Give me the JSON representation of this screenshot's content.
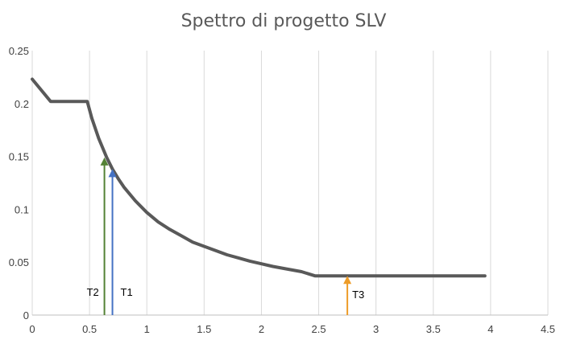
{
  "chart_data": {
    "type": "line",
    "title": "Spettro di progetto SLV",
    "xlabel": "",
    "ylabel": "",
    "xlim": [
      0,
      4.5
    ],
    "ylim": [
      0,
      0.25
    ],
    "x_ticks": [
      0,
      0.5,
      1,
      1.5,
      2,
      2.5,
      3,
      3.5,
      4,
      4.5
    ],
    "x_tick_labels": [
      "0",
      "0.5",
      "1",
      "1.5",
      "2",
      "2.5",
      "3",
      "3.5",
      "4",
      "4.5"
    ],
    "y_ticks": [
      0,
      0.05,
      0.1,
      0.15,
      0.2,
      0.25
    ],
    "y_tick_labels": [
      "0",
      "0.05",
      "0.1",
      "0.15",
      "0.2",
      "0.25"
    ],
    "grid": {
      "vertical": true,
      "horizontal": false
    },
    "series": [
      {
        "color": "#595959",
        "x": [
          0,
          0.16,
          0.48,
          0.52,
          0.58,
          0.65,
          0.7,
          0.75,
          0.8,
          0.9,
          1.0,
          1.1,
          1.2,
          1.3,
          1.4,
          1.5,
          1.6,
          1.7,
          1.8,
          1.9,
          2.0,
          2.1,
          2.2,
          2.35,
          2.47,
          2.6,
          3.0,
          3.5,
          3.95
        ],
        "y": [
          0.223,
          0.202,
          0.202,
          0.186,
          0.167,
          0.149,
          0.138,
          0.129,
          0.121,
          0.108,
          0.097,
          0.088,
          0.081,
          0.075,
          0.069,
          0.065,
          0.061,
          0.057,
          0.054,
          0.051,
          0.0485,
          0.046,
          0.044,
          0.041,
          0.037,
          0.037,
          0.037,
          0.037,
          0.037
        ]
      }
    ],
    "annotations": [
      {
        "label": "T2",
        "x": 0.63,
        "y": 0.149,
        "color": "#548235"
      },
      {
        "label": "T1",
        "x": 0.7,
        "y": 0.138,
        "color": "#4472c4"
      },
      {
        "label": "T3",
        "x": 2.75,
        "y": 0.037,
        "color": "#ed9c28"
      }
    ]
  }
}
